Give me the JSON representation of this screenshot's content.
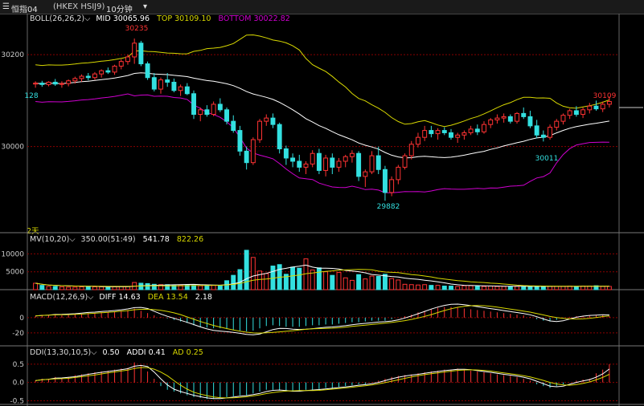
{
  "topbar": {
    "title": "恒指04",
    "symbol": "(HKEX HSIJ9)",
    "period": "10分钟",
    "dropdown_icon": "chevron-down-icon"
  },
  "panels": {
    "boll": {
      "name": "BOLL(26,26,2)",
      "mid_label": "MID",
      "mid": "30065.96",
      "top_label": "TOP",
      "top": "30109.10",
      "bottom_label": "BOTTOM",
      "bottom": "30022.82",
      "days_label": "2天"
    },
    "mv": {
      "name": "MV(10,20)",
      "vol": "350.00(51:49)",
      "ma10": "541.78",
      "ma20": "822.26"
    },
    "macd": {
      "name": "MACD(12,26,9)",
      "diff_label": "DIFF",
      "diff": "14.63",
      "dea_label": "DEA",
      "dea": "13.54",
      "macd": "2.18"
    },
    "ddi": {
      "name": "DDI(13,30,10,5)",
      "ddi": "0.50",
      "addi_label": "ADDI",
      "addi": "0.41",
      "ad_label": "AD",
      "ad": "0.25"
    }
  },
  "colors": {
    "up": "#ff3333",
    "down": "#33e0e0",
    "mid": "#ffffff",
    "top": "#d8d800",
    "bottom": "#d000d0",
    "grid": "#8b0000",
    "ma20": "#d8d800"
  },
  "chart_data": [
    {
      "type": "candlestick",
      "title": "BOLL(26,26,2)",
      "ylim": [
        29830,
        30270
      ],
      "yticks": [
        "30200",
        "30000"
      ],
      "annotations": {
        "high": "30235",
        "low": "29882",
        "last_high": "30109",
        "left": "128",
        "local_low": "30011"
      },
      "candles": [
        [
          30136,
          30142,
          30128,
          30138
        ],
        [
          30138,
          30143,
          30130,
          30135
        ],
        [
          30135,
          30142,
          30131,
          30140
        ],
        [
          30140,
          30147,
          30132,
          30136
        ],
        [
          30136,
          30142,
          30128,
          30137
        ],
        [
          30137,
          30146,
          30131,
          30143
        ],
        [
          30143,
          30152,
          30137,
          30148
        ],
        [
          30148,
          30157,
          30141,
          30153
        ],
        [
          30153,
          30160,
          30144,
          30150
        ],
        [
          30150,
          30162,
          30145,
          30158
        ],
        [
          30158,
          30168,
          30150,
          30165
        ],
        [
          30165,
          30172,
          30158,
          30162
        ],
        [
          30162,
          30178,
          30156,
          30175
        ],
        [
          30175,
          30190,
          30168,
          30185
        ],
        [
          30185,
          30200,
          30178,
          30195
        ],
        [
          30195,
          30235,
          30180,
          30225
        ],
        [
          30225,
          30230,
          30175,
          30180
        ],
        [
          30180,
          30185,
          30145,
          30150
        ],
        [
          30150,
          30160,
          30120,
          30125
        ],
        [
          30125,
          30150,
          30115,
          30145
        ],
        [
          30145,
          30160,
          30130,
          30140
        ],
        [
          30140,
          30148,
          30118,
          30122
        ],
        [
          30122,
          30135,
          30110,
          30130
        ],
        [
          30130,
          30138,
          30112,
          30115
        ],
        [
          30115,
          30122,
          30060,
          30070
        ],
        [
          30070,
          30085,
          30055,
          30080
        ],
        [
          30080,
          30090,
          30065,
          30070
        ],
        [
          30070,
          30098,
          30066,
          30092
        ],
        [
          30092,
          30105,
          30075,
          30080
        ],
        [
          30080,
          30085,
          30048,
          30055
        ],
        [
          30055,
          30068,
          30030,
          30035
        ],
        [
          30035,
          30045,
          29980,
          29990
        ],
        [
          29990,
          30000,
          29950,
          29965
        ],
        [
          29965,
          30020,
          29960,
          30015
        ],
        [
          30015,
          30060,
          30008,
          30055
        ],
        [
          30055,
          30070,
          30045,
          30062
        ],
        [
          30062,
          30072,
          30040,
          30048
        ],
        [
          30048,
          30052,
          29985,
          29995
        ],
        [
          29995,
          30002,
          29960,
          29975
        ],
        [
          29975,
          29985,
          29955,
          29968
        ],
        [
          29968,
          29982,
          29945,
          29955
        ],
        [
          29955,
          29968,
          29940,
          29962
        ],
        [
          29962,
          29992,
          29955,
          29985
        ],
        [
          29985,
          29995,
          29940,
          29948
        ],
        [
          29948,
          29982,
          29935,
          29975
        ],
        [
          29975,
          29985,
          29940,
          29955
        ],
        [
          29955,
          29975,
          29945,
          29968
        ],
        [
          29968,
          29982,
          29955,
          29978
        ],
        [
          29978,
          29992,
          29965,
          29985
        ],
        [
          29985,
          29990,
          29925,
          29935
        ],
        [
          29935,
          29950,
          29912,
          29945
        ],
        [
          29945,
          29990,
          29940,
          29980
        ],
        [
          29980,
          30000,
          29940,
          29950
        ],
        [
          29950,
          29958,
          29882,
          29900
        ],
        [
          29900,
          29935,
          29892,
          29928
        ],
        [
          29928,
          29960,
          29918,
          29955
        ],
        [
          29955,
          29985,
          29950,
          29980
        ],
        [
          29980,
          30012,
          29972,
          30005
        ],
        [
          30005,
          30030,
          29998,
          30020
        ],
        [
          30020,
          30045,
          30012,
          30035
        ],
        [
          30035,
          30045,
          30020,
          30028
        ],
        [
          30028,
          30040,
          30015,
          30035
        ],
        [
          30035,
          30042,
          30025,
          30030
        ],
        [
          30030,
          30038,
          30015,
          30020
        ],
        [
          30020,
          30030,
          30008,
          30025
        ],
        [
          30025,
          30035,
          30015,
          30030
        ],
        [
          30030,
          30045,
          30025,
          30038
        ],
        [
          30038,
          30048,
          30025,
          30032
        ],
        [
          30032,
          30055,
          30028,
          30048
        ],
        [
          30048,
          30062,
          30040,
          30058
        ],
        [
          30058,
          30070,
          30050,
          30062
        ],
        [
          30062,
          30072,
          30052,
          30065
        ],
        [
          30065,
          30070,
          30050,
          30055
        ],
        [
          30055,
          30075,
          30050,
          30072
        ],
        [
          30072,
          30085,
          30060,
          30065
        ],
        [
          30065,
          30078,
          30040,
          30045
        ],
        [
          30045,
          30058,
          30018,
          30025
        ],
        [
          30025,
          30035,
          30011,
          30020
        ],
        [
          30020,
          30048,
          30015,
          30042
        ],
        [
          30042,
          30060,
          30035,
          30055
        ],
        [
          30055,
          30072,
          30048,
          30068
        ],
        [
          30068,
          30082,
          30060,
          30078
        ],
        [
          30078,
          30088,
          30065,
          30070
        ],
        [
          30070,
          30085,
          30062,
          30080
        ],
        [
          30080,
          30095,
          30072,
          30088
        ],
        [
          30088,
          30100,
          30078,
          30082
        ],
        [
          30082,
          30098,
          30075,
          30092
        ],
        [
          30092,
          30109,
          30085,
          30098
        ]
      ]
    },
    {
      "type": "bar",
      "title": "MV(10,20)",
      "ylim": [
        0,
        13000
      ],
      "yticks": [
        "10000",
        "5000"
      ],
      "values": [
        1800,
        1200,
        900,
        900,
        800,
        700,
        700,
        800,
        900,
        800,
        800,
        800,
        800,
        900,
        900,
        2000,
        1800,
        1700,
        1500,
        1400,
        1400,
        1200,
        1300,
        1300,
        1200,
        1100,
        1300,
        1200,
        1200,
        2500,
        4000,
        5600,
        11000,
        9000,
        5200,
        4500,
        6600,
        7000,
        4300,
        6300,
        6000,
        8600,
        5500,
        6100,
        5000,
        4000,
        4800,
        3300,
        2600,
        4200,
        3000,
        3800,
        3700,
        4300,
        3100,
        2700,
        1500,
        1400,
        1300,
        1400,
        1200,
        1200,
        1000,
        1000,
        900,
        1100,
        1100,
        900,
        900,
        1000,
        900,
        900,
        800,
        900,
        900,
        1000,
        1000,
        900,
        900,
        900,
        900,
        1000,
        900,
        1000,
        1000,
        1100,
        900,
        900
      ]
    },
    {
      "type": "bar",
      "title": "MACD(12,26,9)",
      "ylim": [
        -37,
        22
      ],
      "yticks": [
        "0",
        "-20"
      ],
      "values": [
        2,
        3,
        3,
        4,
        3,
        4,
        5,
        5,
        6,
        6,
        7,
        7,
        8,
        9,
        10,
        12,
        9,
        6,
        3,
        1,
        -1,
        -3,
        -5,
        -7,
        -10,
        -12,
        -13,
        -14,
        -14,
        -15,
        -16,
        -17,
        -18,
        -17,
        -14,
        -11,
        -10,
        -11,
        -12,
        -12,
        -12,
        -11,
        -10,
        -10,
        -9,
        -9,
        -8,
        -7,
        -6,
        -6,
        -5,
        -4,
        -4,
        -4,
        -2,
        0,
        2,
        4,
        7,
        9,
        11,
        13,
        14,
        14,
        13,
        12,
        11,
        10,
        9,
        8,
        7,
        6,
        5,
        4,
        3,
        1,
        -2,
        -4,
        -5,
        -3,
        -1,
        1,
        2,
        2,
        3,
        3,
        3,
        2
      ]
    },
    {
      "type": "bar",
      "title": "DDI(13,30,10,5)",
      "ylim": [
        -0.6,
        0.65
      ],
      "yticks": [
        "0.5",
        "0.0",
        "-0.5"
      ],
      "values": [
        0.05,
        0.1,
        0.1,
        0.15,
        0.12,
        0.15,
        0.2,
        0.22,
        0.25,
        0.28,
        0.3,
        0.32,
        0.35,
        0.38,
        0.4,
        0.55,
        0.45,
        0.3,
        0.1,
        -0.1,
        -0.2,
        -0.25,
        -0.3,
        -0.35,
        -0.4,
        -0.42,
        -0.45,
        -0.45,
        -0.42,
        -0.4,
        -0.38,
        -0.35,
        -0.35,
        -0.3,
        -0.25,
        -0.2,
        -0.2,
        -0.22,
        -0.25,
        -0.25,
        -0.22,
        -0.2,
        -0.2,
        -0.18,
        -0.15,
        -0.15,
        -0.12,
        -0.1,
        -0.08,
        -0.05,
        -0.05,
        0.0,
        0.05,
        0.1,
        0.15,
        0.18,
        0.2,
        0.22,
        0.25,
        0.28,
        0.3,
        0.32,
        0.35,
        0.35,
        0.38,
        0.35,
        0.32,
        0.3,
        0.28,
        0.25,
        0.22,
        0.2,
        0.18,
        0.15,
        0.1,
        0.05,
        -0.05,
        -0.1,
        -0.15,
        -0.1,
        -0.05,
        0.0,
        0.05,
        0.08,
        0.1,
        0.25,
        0.35,
        0.5
      ]
    }
  ]
}
